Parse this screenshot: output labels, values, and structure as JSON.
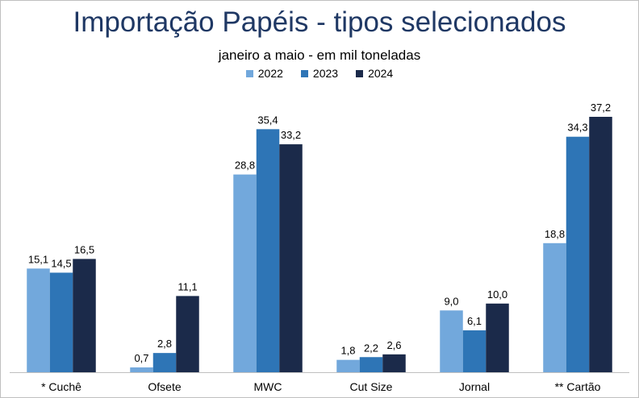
{
  "chart_data": {
    "type": "bar",
    "title": "Importação Papéis - tipos selecionados",
    "subtitle": "janeiro a maio  -  em mil toneladas",
    "categories": [
      "* Cuchê",
      "Ofsete",
      "MWC",
      "Cut Size",
      "Jornal",
      "** Cartão"
    ],
    "series": [
      {
        "name": "2022",
        "color": "#72a8dc",
        "values": [
          15.1,
          0.7,
          28.8,
          1.8,
          9.0,
          18.8
        ],
        "labels": [
          "15,1",
          "0,7",
          "28,8",
          "1,8",
          "9,0",
          "18,8"
        ]
      },
      {
        "name": "2023",
        "color": "#2e75b6",
        "values": [
          14.5,
          2.8,
          35.4,
          2.2,
          6.1,
          34.3
        ],
        "labels": [
          "14,5",
          "2,8",
          "35,4",
          "2,2",
          "6,1",
          "34,3"
        ]
      },
      {
        "name": "2024",
        "color": "#1b2a4a",
        "values": [
          16.5,
          11.1,
          33.2,
          2.6,
          10.0,
          37.2
        ],
        "labels": [
          "16,5",
          "11,1",
          "33,2",
          "2,6",
          "10,0",
          "37,2"
        ]
      }
    ],
    "ylim": [
      0,
      40
    ],
    "grid": false,
    "legend": "top-center"
  }
}
